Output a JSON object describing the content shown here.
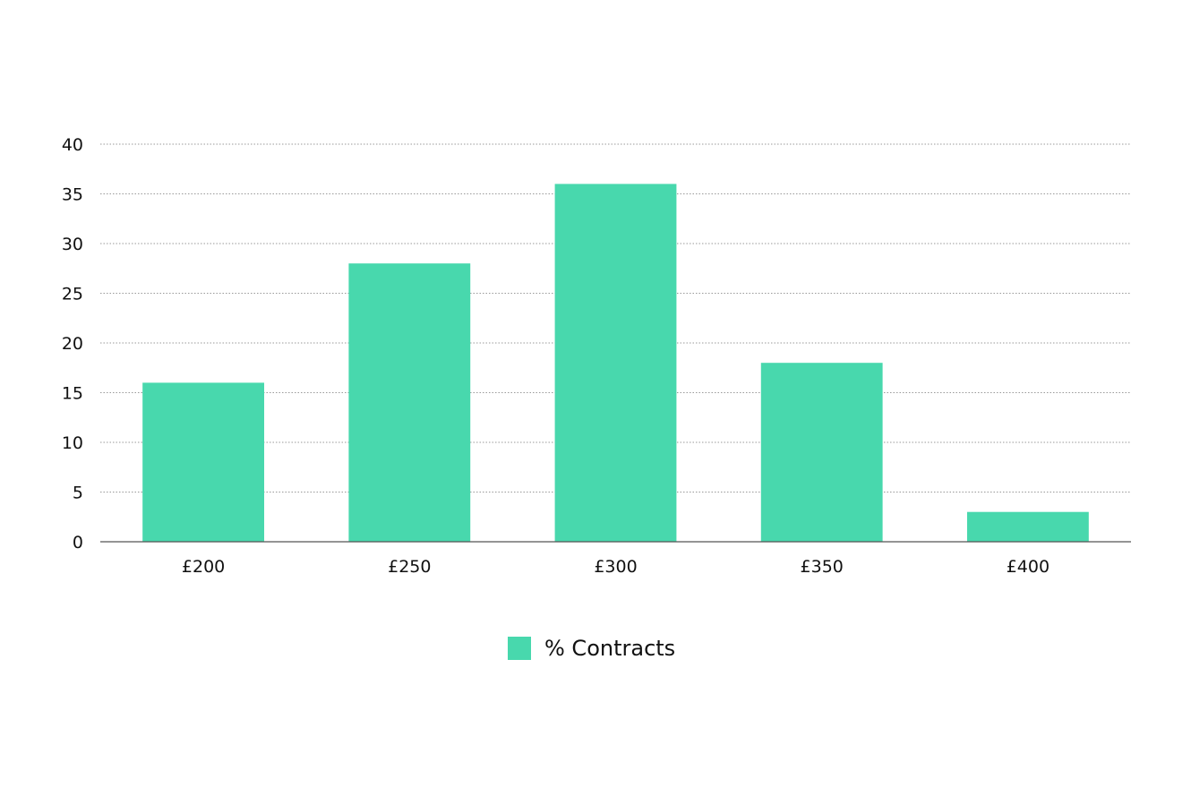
{
  "chart_data": {
    "type": "bar",
    "categories": [
      "£200",
      "£250",
      "£300",
      "£350",
      "£400"
    ],
    "series": [
      {
        "name": "% Contracts",
        "values": [
          16,
          28,
          36,
          18,
          3
        ]
      }
    ],
    "ylim": [
      0,
      40
    ],
    "yticks": [
      0,
      5,
      10,
      15,
      20,
      25,
      30,
      35,
      40
    ],
    "grid": true,
    "legend_position": "bottom-center",
    "colors": {
      "bar": "#48d8ad",
      "grid": "#999999",
      "axis": "#555555"
    }
  }
}
